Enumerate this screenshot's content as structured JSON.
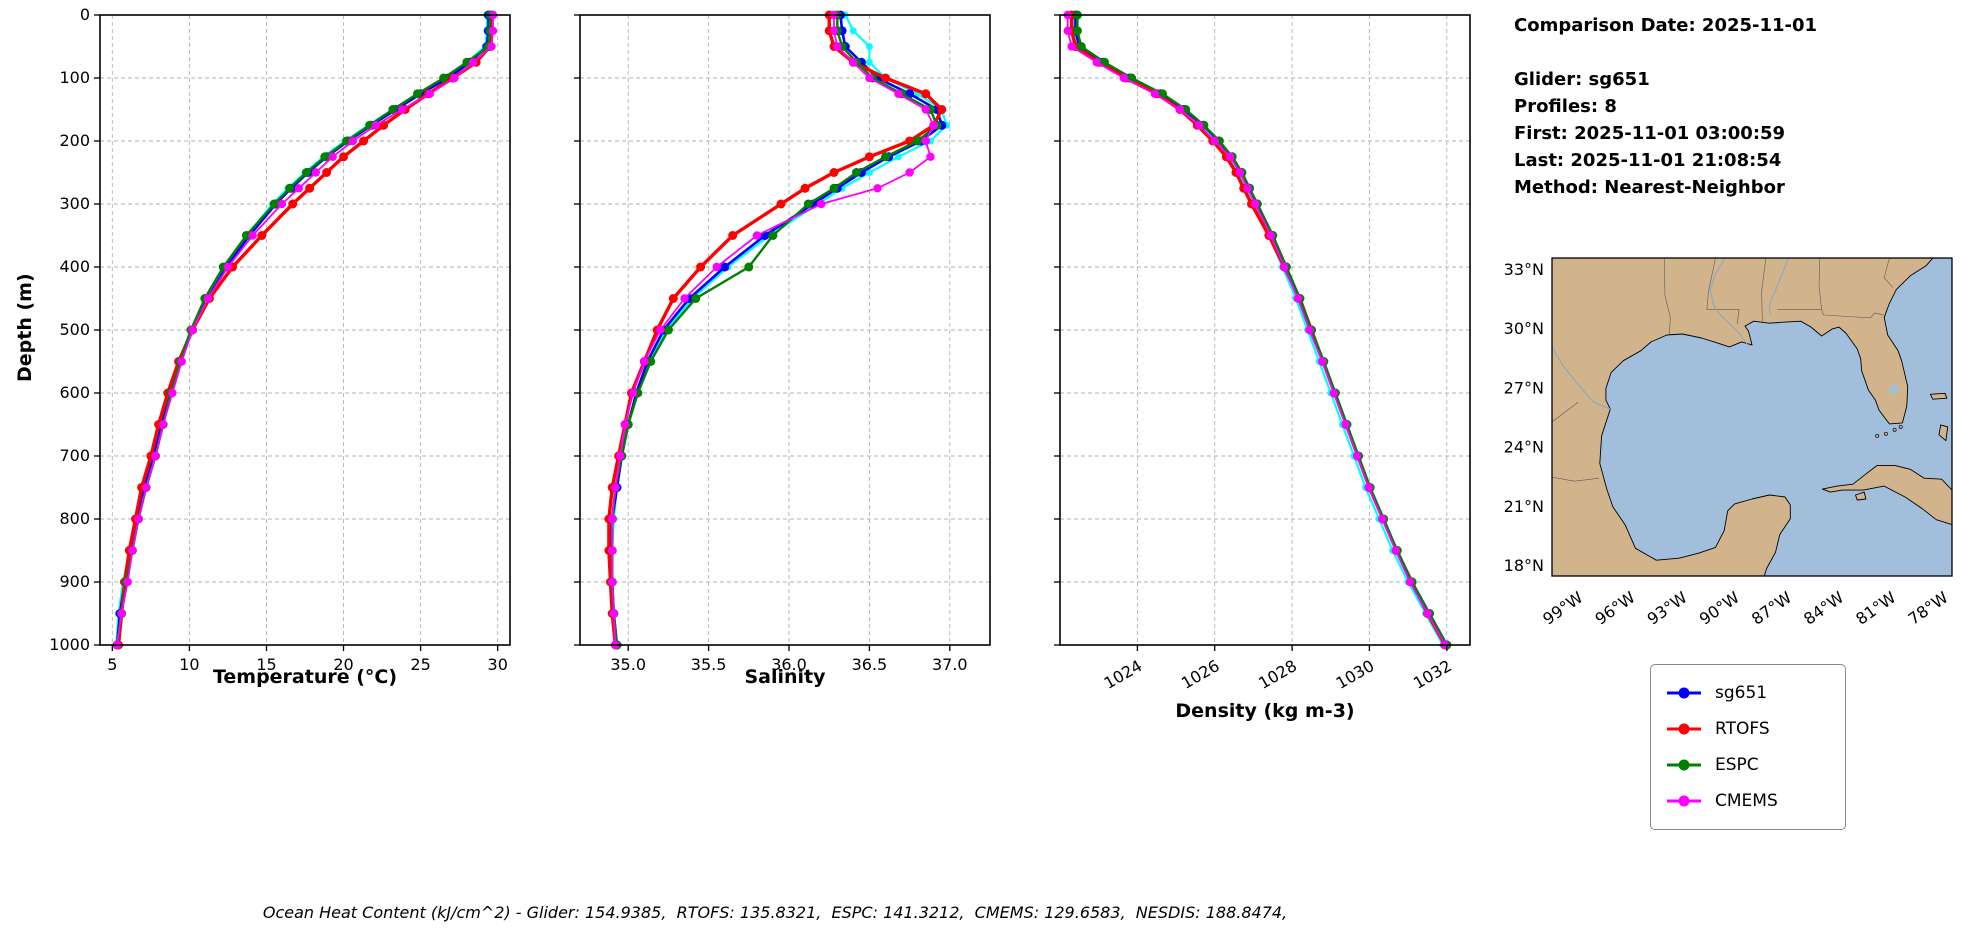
{
  "info_panel": {
    "comparison_date": "Comparison Date: 2025-11-01",
    "glider": "Glider: sg651",
    "profiles": "Profiles: 8",
    "first": "First: 2025-11-01 03:00:59",
    "last": "Last: 2025-11-01 21:08:54",
    "method": "Method: Nearest-Neighbor"
  },
  "ylabel": "Depth (m)",
  "footer": "Ocean Heat Content (kJ/cm^2) - Glider: 154.9385,  RTOFS: 135.8321,  ESPC: 141.3212,  CMEMS: 129.6583,  NESDIS: 188.8474,",
  "legend": {
    "items": [
      {
        "label": "sg651",
        "color": "#0000ff"
      },
      {
        "label": "RTOFS",
        "color": "#ff0000"
      },
      {
        "label": "ESPC",
        "color": "#008000"
      },
      {
        "label": "CMEMS",
        "color": "#ff00ff"
      }
    ]
  },
  "map": {
    "lat_ticks": [
      "33°N",
      "30°N",
      "27°N",
      "24°N",
      "21°N",
      "18°N"
    ],
    "lat_values": [
      33,
      30,
      27,
      24,
      21,
      18
    ],
    "lon_ticks": [
      "99°W",
      "96°W",
      "93°W",
      "90°W",
      "87°W",
      "84°W",
      "81°W",
      "78°W"
    ],
    "lon_values": [
      -99,
      -96,
      -93,
      -90,
      -87,
      -84,
      -81,
      -78
    ],
    "extent": {
      "lon_min": -100.5,
      "lon_max": -77.5,
      "lat_min": 17.5,
      "lat_max": 33.6
    },
    "land_color": "#d2b48c",
    "water_color": "#a1bedd",
    "coast_color": "#000000"
  },
  "chart_data": [
    {
      "type": "line",
      "id": "temperature-profile",
      "xlabel": "Temperature (°C)",
      "xlim": [
        4.2,
        30.8
      ],
      "xticks": [
        5,
        10,
        15,
        20,
        25,
        30
      ],
      "xtick_rotation": 0,
      "ylim": [
        0,
        1000
      ],
      "yticks": [
        0,
        100,
        200,
        300,
        400,
        500,
        600,
        700,
        800,
        900,
        1000
      ],
      "depths": [
        0,
        25,
        50,
        75,
        100,
        125,
        150,
        175,
        200,
        225,
        250,
        275,
        300,
        350,
        400,
        450,
        500,
        550,
        600,
        650,
        700,
        750,
        800,
        850,
        900,
        950,
        1000
      ],
      "series": [
        {
          "name": "cyan-profiles",
          "color": "#00ffff",
          "lw": 2.2,
          "marker_r": 3.5,
          "values": [
            29.3,
            29.3,
            29.2,
            28.0,
            26.6,
            24.8,
            23.2,
            21.6,
            20.1,
            18.7,
            17.5,
            16.4,
            15.4,
            13.7,
            12.3,
            11.1,
            10.1,
            9.3,
            8.7,
            8.1,
            7.6,
            7.0,
            6.5,
            6.1,
            5.7,
            5.4,
            5.25
          ]
        },
        {
          "name": "sg651",
          "color": "#0000ff",
          "lw": 2.6,
          "marker_r": 4.5,
          "values": [
            29.4,
            29.4,
            29.3,
            28.2,
            26.8,
            25.0,
            23.4,
            21.8,
            20.3,
            18.9,
            17.7,
            16.6,
            15.6,
            13.9,
            12.4,
            11.2,
            10.2,
            9.4,
            8.8,
            8.2,
            7.7,
            7.1,
            6.6,
            6.2,
            5.8,
            5.5,
            5.3
          ]
        },
        {
          "name": "RTOFS",
          "color": "#ff0000",
          "lw": 3.4,
          "marker_r": 4.5,
          "values": [
            29.6,
            29.6,
            29.5,
            28.6,
            27.1,
            25.5,
            24.0,
            22.6,
            21.3,
            20.0,
            18.9,
            17.8,
            16.7,
            14.7,
            12.8,
            11.3,
            10.2,
            9.3,
            8.6,
            8.0,
            7.5,
            6.9,
            6.5,
            6.1,
            5.8,
            5.6,
            5.4
          ]
        },
        {
          "name": "ESPC",
          "color": "#008000",
          "lw": 2.4,
          "marker_r": 4.5,
          "values": [
            29.5,
            29.5,
            29.4,
            28.0,
            26.5,
            24.8,
            23.2,
            21.7,
            20.2,
            18.8,
            17.6,
            16.5,
            15.5,
            13.7,
            12.2,
            11.0,
            10.1,
            9.4,
            8.8,
            8.3,
            7.8,
            7.2,
            6.7,
            6.3,
            5.9,
            5.6,
            5.3
          ]
        },
        {
          "name": "CMEMS",
          "color": "#ff00ff",
          "lw": 1.8,
          "marker_r": 4.2,
          "values": [
            29.7,
            29.7,
            29.6,
            28.4,
            27.2,
            25.6,
            23.8,
            22.1,
            20.6,
            19.3,
            18.2,
            17.1,
            16.0,
            14.1,
            12.5,
            11.2,
            10.2,
            9.5,
            8.9,
            8.3,
            7.8,
            7.2,
            6.7,
            6.3,
            6.0,
            5.6,
            5.3
          ]
        }
      ]
    },
    {
      "type": "line",
      "id": "salinity-profile",
      "xlabel": "Salinity",
      "xlim": [
        34.7,
        37.25
      ],
      "xticks": [
        35.0,
        35.5,
        36.0,
        36.5,
        37.0
      ],
      "xtick_labels": [
        "35.0",
        "35.5",
        "36.0",
        "36.5",
        "37.0"
      ],
      "xtick_rotation": 0,
      "ylim": [
        0,
        1000
      ],
      "yticks": [
        0,
        100,
        200,
        300,
        400,
        500,
        600,
        700,
        800,
        900,
        1000
      ],
      "depths": [
        0,
        25,
        50,
        75,
        100,
        125,
        150,
        175,
        200,
        225,
        250,
        275,
        300,
        350,
        400,
        450,
        500,
        550,
        600,
        650,
        700,
        750,
        800,
        850,
        900,
        950,
        1000
      ],
      "series": [
        {
          "name": "cyan-profiles",
          "color": "#00ffff",
          "lw": 2.2,
          "marker_r": 3.5,
          "values": [
            36.35,
            36.4,
            36.5,
            36.5,
            36.6,
            36.8,
            36.95,
            36.98,
            36.88,
            36.68,
            36.5,
            36.33,
            36.18,
            35.88,
            35.62,
            35.4,
            35.24,
            35.13,
            35.06,
            35.0,
            34.96,
            34.93,
            34.91,
            34.9,
            34.9,
            34.91,
            34.93
          ]
        },
        {
          "name": "sg651",
          "color": "#0000ff",
          "lw": 2.6,
          "marker_r": 4.5,
          "values": [
            36.32,
            36.33,
            36.35,
            36.45,
            36.55,
            36.75,
            36.92,
            36.95,
            36.82,
            36.62,
            36.45,
            36.3,
            36.15,
            35.85,
            35.6,
            35.38,
            35.22,
            35.12,
            35.05,
            35.0,
            34.96,
            34.93,
            34.9,
            34.89,
            34.9,
            34.91,
            34.93
          ]
        },
        {
          "name": "RTOFS",
          "color": "#ff0000",
          "lw": 3.4,
          "marker_r": 4.5,
          "values": [
            36.25,
            36.25,
            36.28,
            36.4,
            36.6,
            36.85,
            36.95,
            36.9,
            36.75,
            36.5,
            36.28,
            36.1,
            35.95,
            35.65,
            35.45,
            35.28,
            35.18,
            35.1,
            35.02,
            34.98,
            34.94,
            34.9,
            34.88,
            34.88,
            34.89,
            34.9,
            34.92
          ]
        },
        {
          "name": "ESPC",
          "color": "#008000",
          "lw": 2.4,
          "marker_r": 4.5,
          "values": [
            36.3,
            36.3,
            36.33,
            36.42,
            36.52,
            36.7,
            36.88,
            36.92,
            36.8,
            36.6,
            36.42,
            36.28,
            36.12,
            35.9,
            35.75,
            35.42,
            35.25,
            35.14,
            35.06,
            35.0,
            34.96,
            34.92,
            34.9,
            34.9,
            34.9,
            34.91,
            34.93
          ]
        },
        {
          "name": "CMEMS",
          "color": "#ff00ff",
          "lw": 1.8,
          "marker_r": 4.2,
          "values": [
            36.28,
            36.28,
            36.3,
            36.4,
            36.5,
            36.68,
            36.85,
            36.9,
            36.85,
            36.88,
            36.75,
            36.55,
            36.2,
            35.8,
            35.55,
            35.35,
            35.2,
            35.1,
            35.03,
            34.98,
            34.95,
            34.92,
            34.9,
            34.9,
            34.9,
            34.91,
            34.92
          ]
        }
      ]
    },
    {
      "type": "line",
      "id": "density-profile",
      "xlabel": "Density (kg m-3)",
      "xlim": [
        1022.0,
        1032.6
      ],
      "xticks": [
        1024,
        1026,
        1028,
        1030,
        1032
      ],
      "xtick_rotation": 30,
      "ylim": [
        0,
        1000
      ],
      "yticks": [
        0,
        100,
        200,
        300,
        400,
        500,
        600,
        700,
        800,
        900,
        1000
      ],
      "depths": [
        0,
        25,
        50,
        75,
        100,
        125,
        150,
        175,
        200,
        225,
        250,
        275,
        300,
        350,
        400,
        450,
        500,
        550,
        600,
        650,
        700,
        750,
        800,
        850,
        900,
        950,
        1000
      ],
      "series": [
        {
          "name": "cyan-profiles",
          "color": "#00ffff",
          "lw": 2.2,
          "marker_r": 3.5,
          "values": [
            1022.35,
            1022.35,
            1022.45,
            1023.0,
            1023.7,
            1024.5,
            1025.1,
            1025.6,
            1026.0,
            1026.35,
            1026.6,
            1026.8,
            1027.0,
            1027.4,
            1027.75,
            1028.1,
            1028.4,
            1028.7,
            1029.0,
            1029.3,
            1029.6,
            1029.9,
            1030.25,
            1030.6,
            1031.0,
            1031.45,
            1031.9
          ]
        },
        {
          "name": "sg651",
          "color": "#0000ff",
          "lw": 2.6,
          "marker_r": 4.5,
          "values": [
            1022.4,
            1022.4,
            1022.5,
            1023.1,
            1023.8,
            1024.6,
            1025.2,
            1025.7,
            1026.1,
            1026.45,
            1026.7,
            1026.9,
            1027.1,
            1027.5,
            1027.85,
            1028.2,
            1028.5,
            1028.8,
            1029.1,
            1029.4,
            1029.7,
            1030.0,
            1030.35,
            1030.7,
            1031.1,
            1031.55,
            1032.0
          ]
        },
        {
          "name": "RTOFS",
          "color": "#ff0000",
          "lw": 3.4,
          "marker_r": 4.5,
          "values": [
            1022.3,
            1022.3,
            1022.4,
            1023.0,
            1023.7,
            1024.5,
            1025.1,
            1025.55,
            1025.95,
            1026.3,
            1026.55,
            1026.75,
            1026.95,
            1027.4,
            1027.8,
            1028.2,
            1028.5,
            1028.8,
            1029.1,
            1029.4,
            1029.7,
            1030.0,
            1030.35,
            1030.7,
            1031.1,
            1031.5,
            1031.95
          ]
        },
        {
          "name": "ESPC",
          "color": "#008000",
          "lw": 2.4,
          "marker_r": 4.5,
          "values": [
            1022.45,
            1022.45,
            1022.55,
            1023.15,
            1023.85,
            1024.65,
            1025.25,
            1025.72,
            1026.12,
            1026.45,
            1026.7,
            1026.9,
            1027.1,
            1027.5,
            1027.85,
            1028.2,
            1028.5,
            1028.82,
            1029.12,
            1029.42,
            1029.72,
            1030.02,
            1030.37,
            1030.72,
            1031.1,
            1031.55,
            1032.0
          ]
        },
        {
          "name": "CMEMS",
          "color": "#ff00ff",
          "lw": 1.8,
          "marker_r": 4.2,
          "values": [
            1022.2,
            1022.2,
            1022.3,
            1022.95,
            1023.65,
            1024.45,
            1025.1,
            1025.6,
            1026.0,
            1026.4,
            1026.65,
            1026.85,
            1027.05,
            1027.45,
            1027.8,
            1028.15,
            1028.45,
            1028.78,
            1029.08,
            1029.38,
            1029.68,
            1029.98,
            1030.33,
            1030.68,
            1031.05,
            1031.5,
            1031.95
          ]
        }
      ]
    }
  ]
}
